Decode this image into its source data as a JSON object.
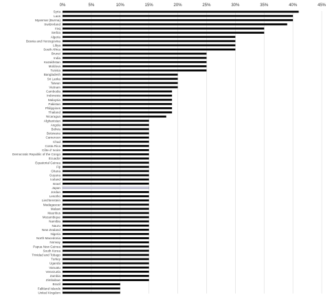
{
  "chart_data": {
    "type": "bar",
    "orientation": "horizontal",
    "title": "",
    "xlabel": "",
    "ylabel": "",
    "xlim": [
      0,
      45
    ],
    "x_ticks": [
      "0%",
      "5%",
      "10%",
      "15%",
      "20%",
      "25%",
      "30%",
      "35%",
      "40%",
      "45%"
    ],
    "x_tick_position": "top",
    "grid": true,
    "highlight_category": "Japan",
    "bar_color": "#000000",
    "highlight_color": "#c9c9d9",
    "categories": [
      "Syria",
      "Laos",
      "Myanmar (Burma)",
      "Switzerland",
      "Iraq",
      "Serbia",
      "Algeria",
      "Bosnia and Herzegovina",
      "Libya",
      "South Africa",
      "Brunei",
      "India",
      "Kazakhstan",
      "Moldova",
      "Tunisia",
      "Bangladesh",
      "Sri Lanka",
      "Taiwan",
      "Vietnam",
      "Cambodia",
      "Indonesia",
      "Malaysia",
      "Pakistan",
      "Philippines",
      "Thailand",
      "Nicaragua",
      "Afghanistan",
      "Angola",
      "Bolivia",
      "Botswana",
      "Cameroon",
      "Chad",
      "Costa Rica",
      "Côte d' Ivoire",
      "Democratic Republic of the Congo",
      "Ecuador",
      "Equatorial Guinea",
      "Fiji",
      "Ghana",
      "Guyana",
      "Iceland",
      "Israel",
      "Japan",
      "Jordan",
      "Lesotho",
      "Liechtenstein",
      "Madagascar",
      "Malawi",
      "Mauritius",
      "Mozambique",
      "Namibia",
      "Nauru",
      "New Zealand",
      "Nigeria",
      "North Macedonia",
      "Norway",
      "Papua New Guinea",
      "South Korea",
      "Trinidad and Tobago",
      "Turkey",
      "Uganda",
      "Vanuatu",
      "Venezuela",
      "Zambia",
      "Zimbabwe",
      "Brazil",
      "Falkland Islands",
      "United Kingdom"
    ],
    "values": [
      41,
      40,
      40,
      39,
      35,
      35,
      30,
      30,
      30,
      30,
      25,
      25,
      25,
      25,
      25,
      20,
      20,
      20,
      20,
      19,
      19,
      19,
      19,
      19,
      19,
      18,
      15,
      15,
      15,
      15,
      15,
      15,
      15,
      15,
      15,
      15,
      15,
      15,
      15,
      15,
      15,
      15,
      15,
      15,
      15,
      15,
      15,
      15,
      15,
      15,
      15,
      15,
      15,
      15,
      15,
      15,
      15,
      15,
      15,
      15,
      15,
      15,
      15,
      15,
      15,
      10,
      10,
      10
    ]
  }
}
